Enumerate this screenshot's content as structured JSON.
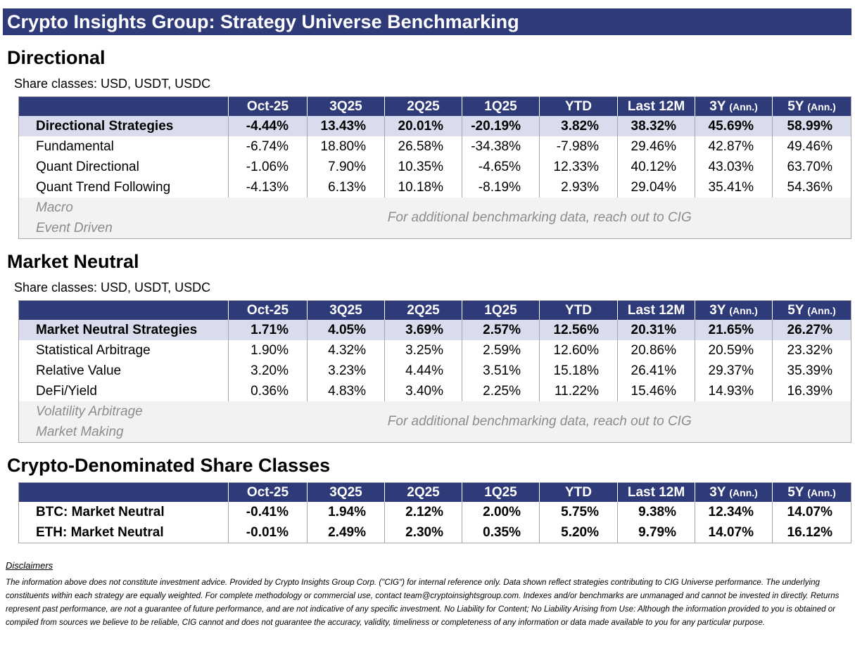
{
  "title": "Crypto Insights Group: Strategy Universe Benchmarking",
  "columns": [
    "Oct-25",
    "3Q25",
    "2Q25",
    "1Q25",
    "YTD",
    "Last 12M",
    "3Y",
    "5Y"
  ],
  "ann_label": "(Ann.)",
  "directional": {
    "title": "Directional",
    "share_classes": "Share classes: USD, USDT, USDC",
    "total": {
      "name": "Directional Strategies",
      "values": [
        "-4.44%",
        "13.43%",
        "20.01%",
        "-20.19%",
        "3.82%",
        "38.32%",
        "45.69%",
        "58.99%"
      ]
    },
    "rows": [
      {
        "name": "Fundamental",
        "values": [
          "-6.74%",
          "18.80%",
          "26.58%",
          "-34.38%",
          "-7.98%",
          "29.46%",
          "42.87%",
          "49.46%"
        ]
      },
      {
        "name": "Quant Directional",
        "values": [
          "-1.06%",
          "7.90%",
          "10.35%",
          "-4.65%",
          "12.33%",
          "40.12%",
          "43.03%",
          "63.70%"
        ]
      },
      {
        "name": "Quant Trend Following",
        "values": [
          "-4.13%",
          "6.13%",
          "10.18%",
          "-8.19%",
          "2.93%",
          "29.04%",
          "35.41%",
          "54.36%"
        ]
      }
    ],
    "unavailable": [
      "Macro",
      "Event Driven"
    ],
    "note": "For additional benchmarking data, reach out to CIG"
  },
  "market_neutral": {
    "title": "Market Neutral",
    "share_classes": "Share classes: USD, USDT, USDC",
    "total": {
      "name": "Market Neutral Strategies",
      "values": [
        "1.71%",
        "4.05%",
        "3.69%",
        "2.57%",
        "12.56%",
        "20.31%",
        "21.65%",
        "26.27%"
      ]
    },
    "rows": [
      {
        "name": "Statistical Arbitrage",
        "values": [
          "1.90%",
          "4.32%",
          "3.25%",
          "2.59%",
          "12.60%",
          "20.86%",
          "20.59%",
          "23.32%"
        ]
      },
      {
        "name": "Relative Value",
        "values": [
          "3.20%",
          "3.23%",
          "4.44%",
          "3.51%",
          "15.18%",
          "26.41%",
          "29.37%",
          "35.39%"
        ]
      },
      {
        "name": "DeFi/Yield",
        "values": [
          "0.36%",
          "4.83%",
          "3.40%",
          "2.25%",
          "11.22%",
          "15.46%",
          "14.93%",
          "16.39%"
        ]
      }
    ],
    "unavailable": [
      "Volatility Arbitrage",
      "Market Making"
    ],
    "note": "For additional benchmarking data, reach out to CIG"
  },
  "crypto_denominated": {
    "title": "Crypto-Denominated Share Classes",
    "rows": [
      {
        "name": "BTC: Market Neutral",
        "values": [
          "-0.41%",
          "1.94%",
          "2.12%",
          "2.00%",
          "5.75%",
          "9.38%",
          "12.34%",
          "14.07%"
        ]
      },
      {
        "name": "ETH: Market Neutral",
        "values": [
          "-0.01%",
          "2.49%",
          "2.30%",
          "0.35%",
          "5.20%",
          "9.79%",
          "14.07%",
          "16.12%"
        ]
      }
    ]
  },
  "disclaimers": {
    "title": "Disclaimers",
    "text": "The information above does not constitute investment advice. Provided by Crypto Insights Group Corp. (\"CIG\") for internal reference only. Data shown reflect strategies contributing to CIG Universe performance. The underlying constituents within each strategy are equally weighted. For complete methodology or commercial use, contact team@cryptoinsightsgroup.com. Indexes and/or benchmarks are unmanaged and cannot be invested in directly. Returns represent past performance, are not a guarantee of future performance, and are not indicative of any specific investment. No Liability for Content; No Liability Arising from Use: Although the information provided to you is obtained or compiled from sources we believe to be reliable, CIG cannot and does not guarantee the accuracy, validity, timeliness or completeness of any information or data made available to you for any particular purpose."
  },
  "colors": {
    "header_bg": "#2f3a78",
    "total_bg": "#d9dcec",
    "unavailable_bg": "#f2f2f2",
    "unavailable_text": "#8c8c8c"
  }
}
